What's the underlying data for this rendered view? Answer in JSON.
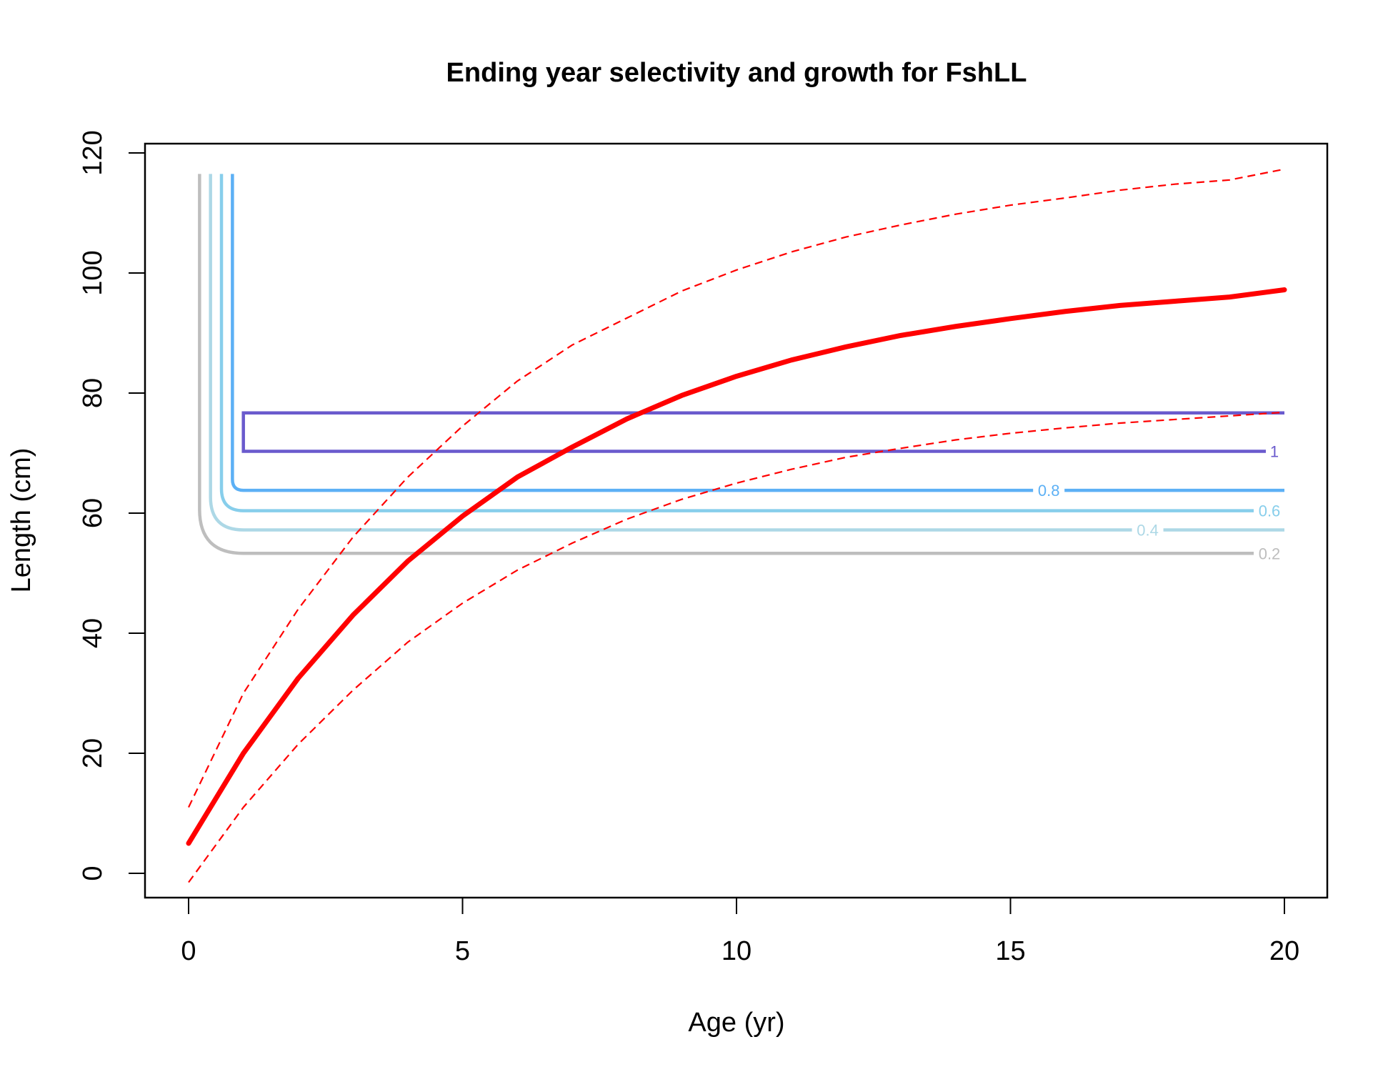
{
  "chart_data": {
    "type": "line",
    "title": "Ending year selectivity and growth for FshLL",
    "xlabel": "Age (yr)",
    "ylabel": "Length (cm)",
    "xlim": [
      -0.8,
      20.8
    ],
    "ylim": [
      -4,
      121.5
    ],
    "xticks": [
      0,
      5,
      10,
      15,
      20
    ],
    "yticks": [
      0,
      20,
      40,
      60,
      80,
      100,
      120
    ],
    "grid": false,
    "growth_mean": {
      "x": [
        0,
        1,
        2,
        3,
        4,
        5,
        6,
        7,
        8,
        9,
        10,
        11,
        12,
        13,
        14,
        15,
        16,
        17,
        18,
        19,
        20
      ],
      "y": [
        5,
        20,
        32.5,
        43,
        52,
        59.5,
        66,
        71,
        75.7,
        79.6,
        82.8,
        85.5,
        87.7,
        89.6,
        91.1,
        92.4,
        93.6,
        94.6,
        95.3,
        96,
        97.2
      ],
      "color": "#ff0000"
    },
    "growth_upper": {
      "x": [
        0,
        1,
        2,
        3,
        4,
        5,
        6,
        7,
        8,
        9,
        10,
        11,
        12,
        13,
        14,
        15,
        16,
        17,
        18,
        19,
        20
      ],
      "y": [
        11,
        30,
        44,
        56,
        66,
        74.5,
        82,
        88,
        92.5,
        97,
        100.5,
        103.5,
        106,
        108,
        109.8,
        111.3,
        112.5,
        113.8,
        114.8,
        115.5,
        117.3
      ],
      "color": "#ff0000"
    },
    "growth_lower": {
      "x": [
        0,
        1,
        2,
        3,
        4,
        5,
        6,
        7,
        8,
        9,
        10,
        11,
        12,
        13,
        14,
        15,
        16,
        17,
        18,
        19,
        20
      ],
      "y": [
        -1.5,
        11,
        21.5,
        30.5,
        38.5,
        45,
        50.5,
        55,
        59,
        62.3,
        65,
        67.3,
        69.3,
        70.8,
        72.2,
        73.3,
        74.2,
        75,
        75.6,
        76.2,
        76.8
      ],
      "color": "#ff0000"
    },
    "selectivity_contours": [
      {
        "level": "0.2",
        "x_vertical": 0.2,
        "y_corner": 53.3,
        "color": "#bebebe"
      },
      {
        "level": "0.4",
        "x_vertical": 0.4,
        "y_corner": 57.2,
        "color": "#add8e6"
      },
      {
        "level": "0.6",
        "x_vertical": 0.6,
        "y_corner": 60.4,
        "color": "#87ceeb"
      },
      {
        "level": "0.8",
        "x_vertical": 0.8,
        "y_corner": 63.8,
        "color": "#5cb0f5"
      },
      {
        "level": "1",
        "x_left": 1,
        "y_bottom": 70.3,
        "y_top": 76.7,
        "color": "#6a5acd"
      }
    ],
    "selectivity_top": 116.5
  }
}
